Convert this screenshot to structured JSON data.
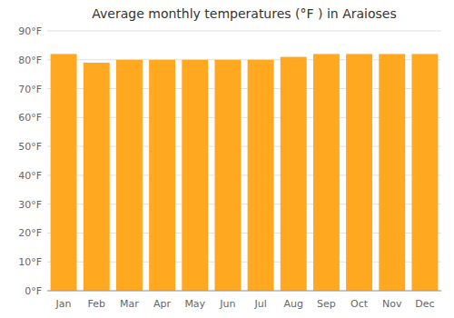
{
  "chart_data": {
    "type": "bar",
    "title": "Average monthly temperatures (°F ) in Araioses",
    "categories": [
      "Jan",
      "Feb",
      "Mar",
      "Apr",
      "May",
      "Jun",
      "Jul",
      "Aug",
      "Sep",
      "Oct",
      "Nov",
      "Dec"
    ],
    "values": [
      82,
      79,
      80,
      80,
      80,
      80,
      80,
      81,
      82,
      82,
      82,
      82
    ],
    "color": "#FFA820",
    "ylim": [
      0,
      90
    ],
    "yticks": [
      {
        "value": 0,
        "label": "0°F"
      },
      {
        "value": 10,
        "label": "10°F"
      },
      {
        "value": 20,
        "label": "20°F"
      },
      {
        "value": 30,
        "label": "30°F"
      },
      {
        "value": 40,
        "label": "40°F"
      },
      {
        "value": 50,
        "label": "50°F"
      },
      {
        "value": 60,
        "label": "60°F"
      },
      {
        "value": 70,
        "label": "70°F"
      },
      {
        "value": 80,
        "label": "80°F"
      },
      {
        "value": 90,
        "label": "90°F"
      }
    ],
    "grid": true
  }
}
